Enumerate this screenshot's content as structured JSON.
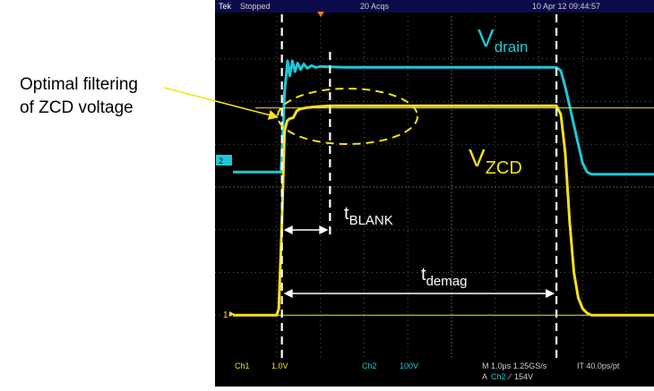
{
  "scope_header": {
    "brand": "Tek",
    "state": "Stopped",
    "acqs": "20 Acqs",
    "datetime": "10 Apr 12 09:44:57"
  },
  "scope_footer": {
    "ch1_label": "Ch1",
    "ch1_scale": "1.0V",
    "ch2_label": "Ch2",
    "ch2_scale": "100V",
    "timebase": "M 1.0µs 1.25GS/s",
    "record": "IT 40.0ps/pt",
    "trigger_prefix": "A",
    "trigger_channel": "Ch2",
    "trigger_slope": "∕",
    "trigger_level": "154V"
  },
  "markers": {
    "ch1": "1",
    "ch2": "2"
  },
  "annotations": {
    "callout_line1": "Optimal filtering",
    "callout_line2": "of ZCD voltage",
    "vdrain_main": "V",
    "vdrain_sub": "drain",
    "vzcd_main": "V",
    "vzcd_sub": "ZCD",
    "tblank_main": "t",
    "tblank_sub": "BLANK",
    "tdemag_main": "t",
    "tdemag_sub": "demag"
  },
  "colors": {
    "screen_bg": "#000000",
    "grid": "#5a5a5a",
    "vdrain": "#1ec8d8",
    "vzcd": "#f2e21a",
    "callout_text": "#000000",
    "annotation_white": "#ffffff",
    "trigger_marker": "#ff7a00"
  },
  "chart_data": {
    "type": "line",
    "x_unit": "divisions",
    "xlim": [
      0,
      10
    ],
    "ylim": [
      -4,
      4
    ],
    "series": [
      {
        "name": "Vdrain",
        "color": "#1ec8d8",
        "x": [
          0.0,
          1.1,
          1.18,
          1.25,
          1.3,
          1.36,
          1.42,
          1.48,
          1.55,
          1.62,
          1.7,
          1.8,
          1.9,
          2.0,
          2.2,
          2.6,
          3.0,
          4.0,
          5.0,
          6.0,
          7.0,
          7.4,
          7.5,
          7.6,
          7.7,
          7.8,
          7.9,
          8.0,
          8.1,
          8.2,
          8.5,
          9.0,
          10.0
        ],
        "y": [
          0.35,
          0.35,
          2.2,
          2.95,
          2.6,
          2.95,
          2.7,
          2.9,
          2.75,
          2.88,
          2.78,
          2.84,
          2.8,
          2.82,
          2.81,
          2.8,
          2.8,
          2.8,
          2.8,
          2.8,
          2.8,
          2.8,
          2.72,
          2.35,
          1.9,
          1.45,
          1.0,
          0.55,
          0.35,
          0.3,
          0.3,
          0.3,
          0.3
        ]
      },
      {
        "name": "VZCD",
        "color": "#f2e21a",
        "x": [
          0.0,
          1.0,
          1.05,
          1.12,
          1.18,
          1.24,
          1.3,
          1.38,
          1.46,
          1.55,
          1.7,
          1.9,
          2.2,
          2.6,
          3.0,
          4.0,
          5.0,
          6.0,
          7.0,
          7.4,
          7.5,
          7.6,
          7.7,
          7.8,
          7.9,
          8.0,
          8.1,
          8.2,
          8.35,
          8.5,
          9.0,
          10.0
        ],
        "y": [
          -3.0,
          -3.0,
          -2.85,
          -0.8,
          1.3,
          1.55,
          1.6,
          1.62,
          1.78,
          1.83,
          1.86,
          1.88,
          1.9,
          1.9,
          1.9,
          1.9,
          1.9,
          1.9,
          1.9,
          1.9,
          1.7,
          0.8,
          -0.8,
          -2.0,
          -2.6,
          -2.85,
          -2.95,
          -3.0,
          -3.0,
          -3.0,
          -3.0,
          -3.0
        ]
      }
    ],
    "ch1_ground_div": -3.0,
    "ch2_ground_div": 0.35,
    "zcd_threshold_div": 1.85,
    "cursor_positions_div": [
      1.12,
      2.22,
      7.4
    ],
    "tblank_span_div": [
      1.12,
      2.22
    ],
    "tdemag_span_div": [
      1.12,
      7.4
    ],
    "grid": true
  }
}
